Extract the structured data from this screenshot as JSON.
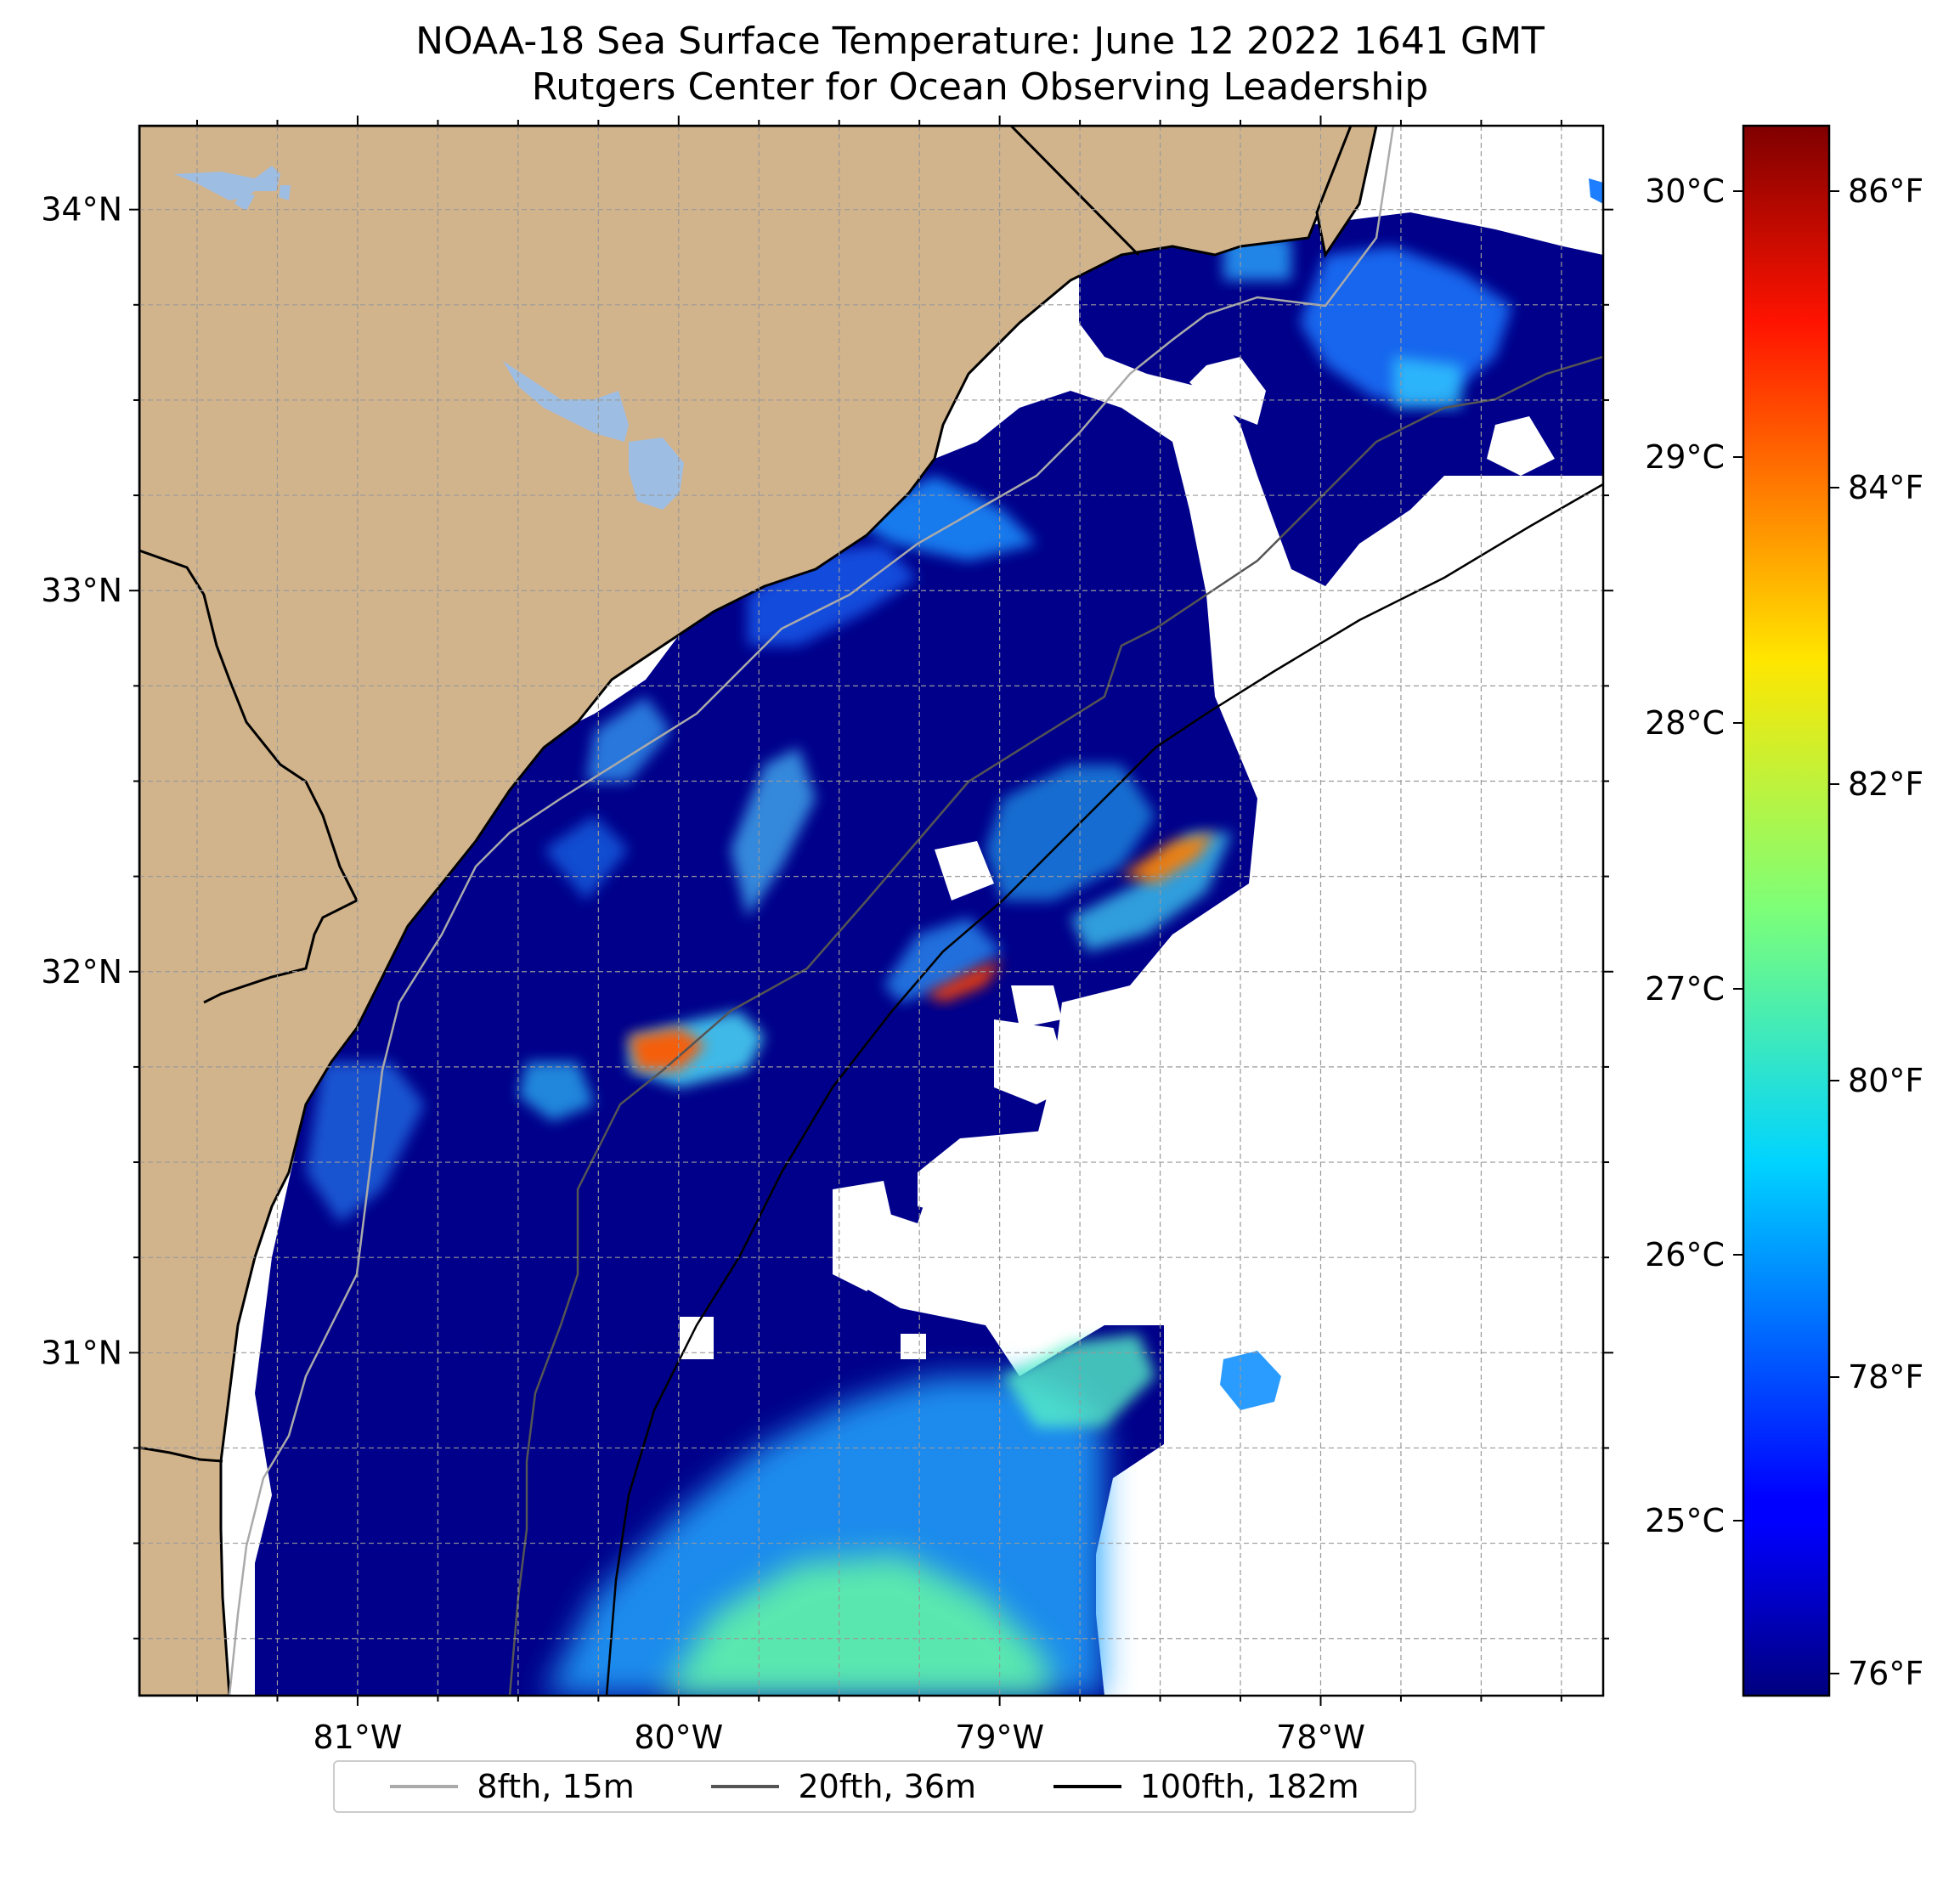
{
  "title": {
    "line1": "NOAA-18 Sea Surface Temperature: June 12 2022 1641 GMT",
    "line2": "Rutgers Center for Ocean Observing Leadership"
  },
  "map": {
    "lon_range": [
      -81.68,
      -77.12
    ],
    "lat_range": [
      30.1,
      34.22
    ],
    "land_color": "#d2b48c",
    "lake_color": "#9ebde3",
    "lon_ticks": [
      {
        "value": -81,
        "label": "81°W"
      },
      {
        "value": -80,
        "label": "80°W"
      },
      {
        "value": -79,
        "label": "79°W"
      },
      {
        "value": -78,
        "label": "78°W"
      }
    ],
    "lat_ticks": [
      {
        "value": 34,
        "label": "34°N"
      },
      {
        "value": 33,
        "label": "33°N"
      },
      {
        "value": 32,
        "label": "32°N"
      },
      {
        "value": 31,
        "label": "31°N"
      }
    ]
  },
  "colorbar": {
    "colormap": "jet",
    "celsius_ticks": [
      "30°C",
      "29°C",
      "28°C",
      "27°C",
      "26°C",
      "25°C"
    ],
    "fahrenheit_ticks": [
      "86°F",
      "84°F",
      "82°F",
      "80°F",
      "78°F",
      "76°F"
    ]
  },
  "legend": {
    "items": [
      {
        "label": "8fth, 15m",
        "color": "#aaaaaa"
      },
      {
        "label": "20fth, 36m",
        "color": "#555555"
      },
      {
        "label": "100fth, 182m",
        "color": "#000000"
      }
    ]
  }
}
